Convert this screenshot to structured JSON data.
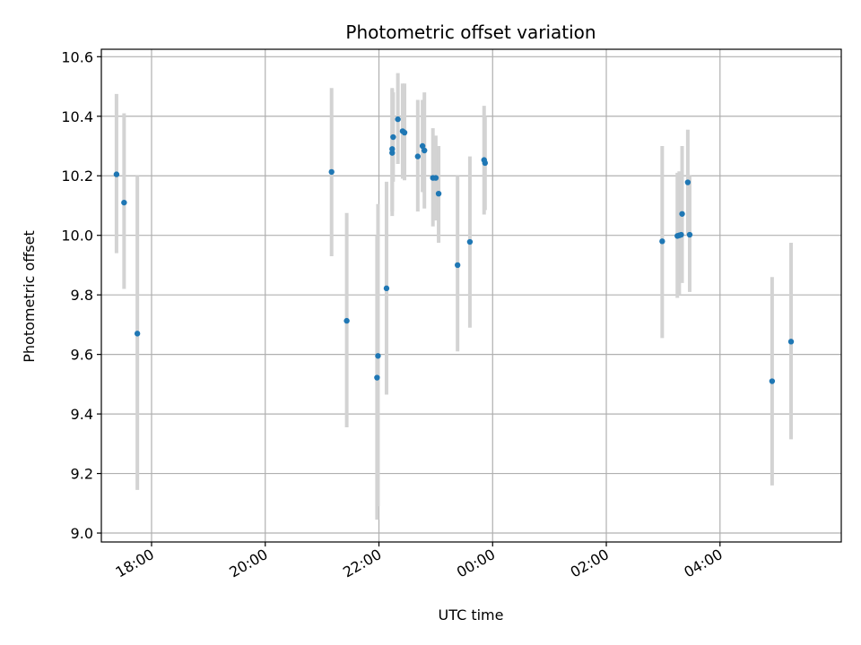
{
  "chart_data": {
    "type": "scatter",
    "title": "Photometric offset variation",
    "xlabel": "UTC time",
    "ylabel": "Photometric offset",
    "x_is_time": true,
    "xlim": [
      "17:07",
      "30:08"
    ],
    "ylim": [
      8.97,
      10.625
    ],
    "xticks": [
      {
        "label": "18:00",
        "t": "18:00"
      },
      {
        "label": "20:00",
        "t": "20:00"
      },
      {
        "label": "22:00",
        "t": "22:00"
      },
      {
        "label": "00:00",
        "t": "24:00"
      },
      {
        "label": "02:00",
        "t": "26:00"
      },
      {
        "label": "04:00",
        "t": "28:00"
      }
    ],
    "yticks": [
      {
        "label": "9.0",
        "v": 9.0
      },
      {
        "label": "9.2",
        "v": 9.2
      },
      {
        "label": "9.4",
        "v": 9.4
      },
      {
        "label": "9.6",
        "v": 9.6
      },
      {
        "label": "9.8",
        "v": 9.8
      },
      {
        "label": "10.0",
        "v": 10.0
      },
      {
        "label": "10.2",
        "v": 10.2
      },
      {
        "label": "10.4",
        "v": 10.4
      },
      {
        "label": "10.6",
        "v": 10.6
      }
    ],
    "grid": true,
    "colors": {
      "point": "#1f77b4",
      "errorbar": "#d3d3d3",
      "grid": "#b0b0b0"
    },
    "series": [
      {
        "points": [
          {
            "t": "17:23",
            "y": 10.205,
            "lo": 9.94,
            "hi": 10.475
          },
          {
            "t": "17:31",
            "y": 10.11,
            "lo": 9.82,
            "hi": 10.41
          },
          {
            "t": "17:45",
            "y": 9.67,
            "lo": 9.145,
            "hi": 10.2
          },
          {
            "t": "21:10",
            "y": 10.213,
            "lo": 9.93,
            "hi": 10.495
          },
          {
            "t": "21:26",
            "y": 9.713,
            "lo": 9.355,
            "hi": 10.075
          },
          {
            "t": "21:58",
            "y": 9.522,
            "lo": 9.045,
            "hi": 10.0
          },
          {
            "t": "21:59",
            "y": 9.595,
            "lo": 9.09,
            "hi": 10.105
          },
          {
            "t": "22:08",
            "y": 9.822,
            "lo": 9.465,
            "hi": 10.18
          },
          {
            "t": "22:14",
            "y": 10.277,
            "lo": 10.065,
            "hi": 10.495
          },
          {
            "t": "22:14",
            "y": 10.29,
            "lo": 10.08,
            "hi": 10.49
          },
          {
            "t": "22:15",
            "y": 10.33,
            "lo": 10.18,
            "hi": 10.48
          },
          {
            "t": "22:20",
            "y": 10.39,
            "lo": 10.24,
            "hi": 10.545
          },
          {
            "t": "22:25",
            "y": 10.35,
            "lo": 10.19,
            "hi": 10.51
          },
          {
            "t": "22:27",
            "y": 10.345,
            "lo": 10.185,
            "hi": 10.51
          },
          {
            "t": "22:41",
            "y": 10.265,
            "lo": 10.08,
            "hi": 10.455
          },
          {
            "t": "22:46",
            "y": 10.3,
            "lo": 10.145,
            "hi": 10.455
          },
          {
            "t": "22:48",
            "y": 10.285,
            "lo": 10.09,
            "hi": 10.48
          },
          {
            "t": "22:57",
            "y": 10.193,
            "lo": 10.03,
            "hi": 10.36
          },
          {
            "t": "23:00",
            "y": 10.193,
            "lo": 10.05,
            "hi": 10.335
          },
          {
            "t": "23:03",
            "y": 10.14,
            "lo": 9.975,
            "hi": 10.3
          },
          {
            "t": "23:23",
            "y": 9.9,
            "lo": 9.61,
            "hi": 10.2
          },
          {
            "t": "23:36",
            "y": 9.978,
            "lo": 9.69,
            "hi": 10.265
          },
          {
            "t": "23:51",
            "y": 10.253,
            "lo": 10.07,
            "hi": 10.435
          },
          {
            "t": "23:52",
            "y": 10.243,
            "lo": 10.085,
            "hi": 10.4
          },
          {
            "t": "26:59",
            "y": 9.98,
            "lo": 9.655,
            "hi": 10.3
          },
          {
            "t": "27:15",
            "y": 9.998,
            "lo": 9.79,
            "hi": 10.21
          },
          {
            "t": "27:17",
            "y": 10.0,
            "lo": 9.8,
            "hi": 10.215
          },
          {
            "t": "27:19",
            "y": 10.002,
            "lo": 9.85,
            "hi": 10.155
          },
          {
            "t": "27:20",
            "y": 10.072,
            "lo": 9.84,
            "hi": 10.3
          },
          {
            "t": "27:26",
            "y": 10.178,
            "lo": 10.0,
            "hi": 10.355
          },
          {
            "t": "27:28",
            "y": 10.002,
            "lo": 9.81,
            "hi": 10.2
          },
          {
            "t": "28:55",
            "y": 9.51,
            "lo": 9.16,
            "hi": 9.86
          },
          {
            "t": "29:15",
            "y": 9.643,
            "lo": 9.315,
            "hi": 9.975
          }
        ]
      }
    ]
  }
}
